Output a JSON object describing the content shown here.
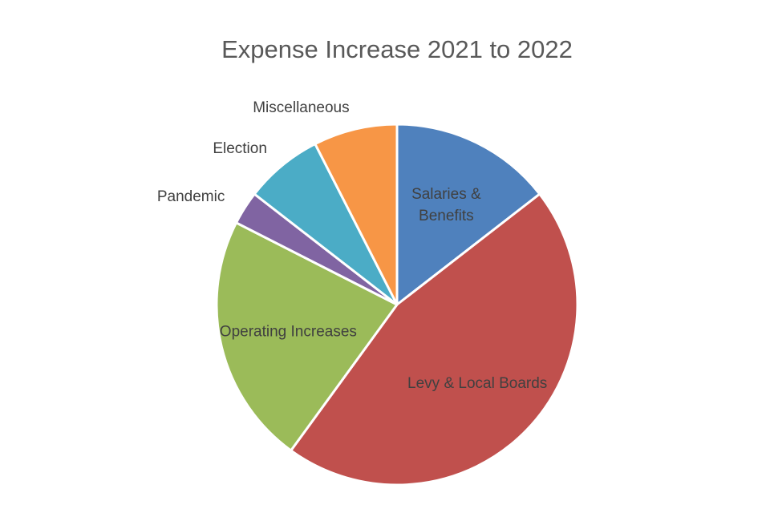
{
  "chart_data": {
    "type": "pie",
    "title": "Expense Increase 2021 to 2022",
    "start_angle_deg": 0,
    "direction": "clockwise",
    "slices": [
      {
        "label": "Salaries &\nBenefits",
        "value": 14.5,
        "color": "#4F81BD",
        "label_position": "inside"
      },
      {
        "label": "Levy & Local Boards",
        "value": 45.5,
        "color": "#C0504D",
        "label_position": "inside"
      },
      {
        "label": "Operating Increases",
        "value": 22.5,
        "color": "#9BBB59",
        "label_position": "inside"
      },
      {
        "label": "Pandemic",
        "value": 3.0,
        "color": "#8064A2",
        "label_position": "outside"
      },
      {
        "label": "Election",
        "value": 7.0,
        "color": "#4BACC6",
        "label_position": "outside"
      },
      {
        "label": "Miscellaneous",
        "value": 7.5,
        "color": "#F79646",
        "label_position": "outside"
      }
    ],
    "legend": "none"
  }
}
